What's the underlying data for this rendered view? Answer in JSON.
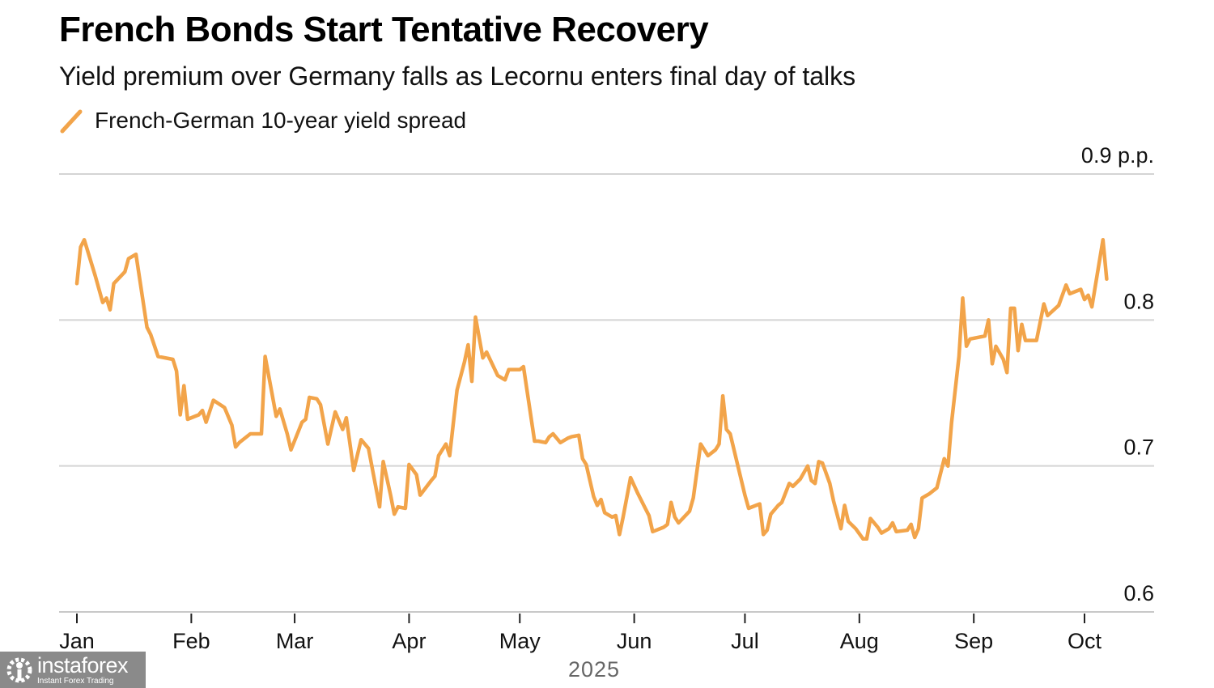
{
  "header": {
    "title": "French Bonds Start Tentative Recovery",
    "subtitle": "Yield premium over Germany falls as Lecornu enters final day of talks"
  },
  "watermark": {
    "brand": "instaforex",
    "tagline": "Instant Forex Trading"
  },
  "colors": {
    "line": "#F2A44A",
    "grid": "#d4d4d4",
    "watermark_bg": "#8a8a8a"
  },
  "chart_data": {
    "type": "line",
    "title": "French Bonds Start Tentative Recovery",
    "subtitle": "Yield premium over Germany falls as Lecornu enters final day of talks",
    "xlabel": "2025",
    "ylabel": "",
    "y_unit": "p.p.",
    "ylim": [
      0.6,
      0.9
    ],
    "yticks": [
      {
        "value": 0.9,
        "label": "0.9 p.p."
      },
      {
        "value": 0.8,
        "label": "0.8"
      },
      {
        "value": 0.7,
        "label": "0.7"
      },
      {
        "value": 0.6,
        "label": "0.6"
      }
    ],
    "xlim": [
      "2025-01-01",
      "2025-10-31"
    ],
    "xticks": [
      {
        "date": "2025-01-01",
        "label": "Jan"
      },
      {
        "date": "2025-02-01",
        "label": "Feb"
      },
      {
        "date": "2025-03-01",
        "label": "Mar"
      },
      {
        "date": "2025-04-01",
        "label": "Apr"
      },
      {
        "date": "2025-05-01",
        "label": "May"
      },
      {
        "date": "2025-06-01",
        "label": "Jun"
      },
      {
        "date": "2025-07-01",
        "label": "Jul"
      },
      {
        "date": "2025-08-01",
        "label": "Aug"
      },
      {
        "date": "2025-09-01",
        "label": "Sep"
      },
      {
        "date": "2025-10-01",
        "label": "Oct"
      }
    ],
    "grid": true,
    "legend": {
      "position": "top-left",
      "entries": [
        "French-German 10-year yield spread"
      ]
    },
    "series": [
      {
        "name": "French-German 10-year yield spread",
        "points": [
          [
            "2025-01-01",
            0.825
          ],
          [
            "2025-01-02",
            0.85
          ],
          [
            "2025-01-03",
            0.855
          ],
          [
            "2025-01-06",
            0.83
          ],
          [
            "2025-01-08",
            0.812
          ],
          [
            "2025-01-09",
            0.815
          ],
          [
            "2025-01-10",
            0.807
          ],
          [
            "2025-01-11",
            0.825
          ],
          [
            "2025-01-14",
            0.833
          ],
          [
            "2025-01-15",
            0.842
          ],
          [
            "2025-01-17",
            0.845
          ],
          [
            "2025-01-20",
            0.795
          ],
          [
            "2025-01-21",
            0.79
          ],
          [
            "2025-01-23",
            0.775
          ],
          [
            "2025-01-27",
            0.773
          ],
          [
            "2025-01-28",
            0.765
          ],
          [
            "2025-01-29",
            0.735
          ],
          [
            "2025-01-30",
            0.755
          ],
          [
            "2025-01-31",
            0.732
          ],
          [
            "2025-02-03",
            0.735
          ],
          [
            "2025-02-04",
            0.738
          ],
          [
            "2025-02-05",
            0.73
          ],
          [
            "2025-02-07",
            0.745
          ],
          [
            "2025-02-10",
            0.74
          ],
          [
            "2025-02-12",
            0.728
          ],
          [
            "2025-02-13",
            0.713
          ],
          [
            "2025-02-14",
            0.716
          ],
          [
            "2025-02-17",
            0.722
          ],
          [
            "2025-02-18",
            0.722
          ],
          [
            "2025-02-20",
            0.722
          ],
          [
            "2025-02-21",
            0.775
          ],
          [
            "2025-02-24",
            0.734
          ],
          [
            "2025-02-25",
            0.739
          ],
          [
            "2025-02-27",
            0.722
          ],
          [
            "2025-02-28",
            0.711
          ],
          [
            "2025-03-03",
            0.73
          ],
          [
            "2025-03-04",
            0.732
          ],
          [
            "2025-03-05",
            0.747
          ],
          [
            "2025-03-07",
            0.746
          ],
          [
            "2025-03-08",
            0.742
          ],
          [
            "2025-03-10",
            0.715
          ],
          [
            "2025-03-12",
            0.737
          ],
          [
            "2025-03-14",
            0.725
          ],
          [
            "2025-03-15",
            0.733
          ],
          [
            "2025-03-17",
            0.697
          ],
          [
            "2025-03-19",
            0.718
          ],
          [
            "2025-03-21",
            0.712
          ],
          [
            "2025-03-24",
            0.672
          ],
          [
            "2025-03-25",
            0.703
          ],
          [
            "2025-03-27",
            0.68
          ],
          [
            "2025-03-28",
            0.667
          ],
          [
            "2025-03-29",
            0.672
          ],
          [
            "2025-03-31",
            0.671
          ],
          [
            "2025-04-01",
            0.701
          ],
          [
            "2025-04-03",
            0.694
          ],
          [
            "2025-04-04",
            0.68
          ],
          [
            "2025-04-07",
            0.69
          ],
          [
            "2025-04-08",
            0.693
          ],
          [
            "2025-04-09",
            0.707
          ],
          [
            "2025-04-11",
            0.715
          ],
          [
            "2025-04-12",
            0.707
          ],
          [
            "2025-04-14",
            0.752
          ],
          [
            "2025-04-16",
            0.771
          ],
          [
            "2025-04-17",
            0.783
          ],
          [
            "2025-04-18",
            0.758
          ],
          [
            "2025-04-19",
            0.802
          ],
          [
            "2025-04-21",
            0.774
          ],
          [
            "2025-04-22",
            0.778
          ],
          [
            "2025-04-25",
            0.762
          ],
          [
            "2025-04-27",
            0.759
          ],
          [
            "2025-04-28",
            0.766
          ],
          [
            "2025-05-01",
            0.766
          ],
          [
            "2025-05-02",
            0.768
          ],
          [
            "2025-05-05",
            0.717
          ],
          [
            "2025-05-06",
            0.717
          ],
          [
            "2025-05-08",
            0.716
          ],
          [
            "2025-05-09",
            0.72
          ],
          [
            "2025-05-10",
            0.722
          ],
          [
            "2025-05-12",
            0.716
          ],
          [
            "2025-05-14",
            0.719
          ],
          [
            "2025-05-15",
            0.72
          ],
          [
            "2025-05-17",
            0.721
          ],
          [
            "2025-05-18",
            0.705
          ],
          [
            "2025-05-19",
            0.701
          ],
          [
            "2025-05-21",
            0.679
          ],
          [
            "2025-05-22",
            0.673
          ],
          [
            "2025-05-23",
            0.677
          ],
          [
            "2025-05-24",
            0.668
          ],
          [
            "2025-05-26",
            0.665
          ],
          [
            "2025-05-27",
            0.666
          ],
          [
            "2025-05-28",
            0.653
          ],
          [
            "2025-05-29",
            0.665
          ],
          [
            "2025-05-31",
            0.692
          ],
          [
            "2025-06-02",
            0.681
          ],
          [
            "2025-06-04",
            0.671
          ],
          [
            "2025-06-05",
            0.666
          ],
          [
            "2025-06-06",
            0.655
          ],
          [
            "2025-06-09",
            0.658
          ],
          [
            "2025-06-10",
            0.66
          ],
          [
            "2025-06-11",
            0.675
          ],
          [
            "2025-06-12",
            0.665
          ],
          [
            "2025-06-13",
            0.661
          ],
          [
            "2025-06-16",
            0.669
          ],
          [
            "2025-06-17",
            0.678
          ],
          [
            "2025-06-19",
            0.715
          ],
          [
            "2025-06-21",
            0.707
          ],
          [
            "2025-06-23",
            0.711
          ],
          [
            "2025-06-24",
            0.715
          ],
          [
            "2025-06-25",
            0.748
          ],
          [
            "2025-06-26",
            0.725
          ],
          [
            "2025-06-27",
            0.722
          ],
          [
            "2025-06-29",
            0.701
          ],
          [
            "2025-07-01",
            0.68
          ],
          [
            "2025-07-02",
            0.671
          ],
          [
            "2025-07-04",
            0.673
          ],
          [
            "2025-07-05",
            0.674
          ],
          [
            "2025-07-06",
            0.653
          ],
          [
            "2025-07-07",
            0.656
          ],
          [
            "2025-07-08",
            0.667
          ],
          [
            "2025-07-10",
            0.673
          ],
          [
            "2025-07-11",
            0.675
          ],
          [
            "2025-07-13",
            0.688
          ],
          [
            "2025-07-14",
            0.686
          ],
          [
            "2025-07-16",
            0.691
          ],
          [
            "2025-07-18",
            0.7
          ],
          [
            "2025-07-19",
            0.69
          ],
          [
            "2025-07-20",
            0.688
          ],
          [
            "2025-07-21",
            0.703
          ],
          [
            "2025-07-22",
            0.702
          ],
          [
            "2025-07-24",
            0.688
          ],
          [
            "2025-07-25",
            0.676
          ],
          [
            "2025-07-27",
            0.657
          ],
          [
            "2025-07-28",
            0.673
          ],
          [
            "2025-07-29",
            0.662
          ],
          [
            "2025-07-31",
            0.657
          ],
          [
            "2025-08-02",
            0.65
          ],
          [
            "2025-08-03",
            0.65
          ],
          [
            "2025-08-04",
            0.664
          ],
          [
            "2025-08-06",
            0.658
          ],
          [
            "2025-08-07",
            0.654
          ],
          [
            "2025-08-09",
            0.657
          ],
          [
            "2025-08-10",
            0.661
          ],
          [
            "2025-08-11",
            0.655
          ],
          [
            "2025-08-14",
            0.656
          ],
          [
            "2025-08-15",
            0.66
          ],
          [
            "2025-08-16",
            0.651
          ],
          [
            "2025-08-17",
            0.657
          ],
          [
            "2025-08-18",
            0.678
          ],
          [
            "2025-08-20",
            0.681
          ],
          [
            "2025-08-22",
            0.685
          ],
          [
            "2025-08-24",
            0.705
          ],
          [
            "2025-08-25",
            0.7
          ],
          [
            "2025-08-26",
            0.73
          ],
          [
            "2025-08-28",
            0.775
          ],
          [
            "2025-08-29",
            0.815
          ],
          [
            "2025-08-30",
            0.782
          ],
          [
            "2025-08-31",
            0.787
          ],
          [
            "2025-09-04",
            0.789
          ],
          [
            "2025-09-05",
            0.8
          ],
          [
            "2025-09-06",
            0.77
          ],
          [
            "2025-09-07",
            0.782
          ],
          [
            "2025-09-09",
            0.773
          ],
          [
            "2025-09-10",
            0.764
          ],
          [
            "2025-09-11",
            0.808
          ],
          [
            "2025-09-12",
            0.808
          ],
          [
            "2025-09-13",
            0.779
          ],
          [
            "2025-09-14",
            0.797
          ],
          [
            "2025-09-15",
            0.786
          ],
          [
            "2025-09-18",
            0.786
          ],
          [
            "2025-09-20",
            0.811
          ],
          [
            "2025-09-21",
            0.803
          ],
          [
            "2025-09-24",
            0.81
          ],
          [
            "2025-09-26",
            0.824
          ],
          [
            "2025-09-27",
            0.818
          ],
          [
            "2025-09-30",
            0.821
          ],
          [
            "2025-10-01",
            0.814
          ],
          [
            "2025-10-02",
            0.817
          ],
          [
            "2025-10-03",
            0.809
          ],
          [
            "2025-10-06",
            0.855
          ],
          [
            "2025-10-07",
            0.828
          ]
        ]
      }
    ]
  }
}
